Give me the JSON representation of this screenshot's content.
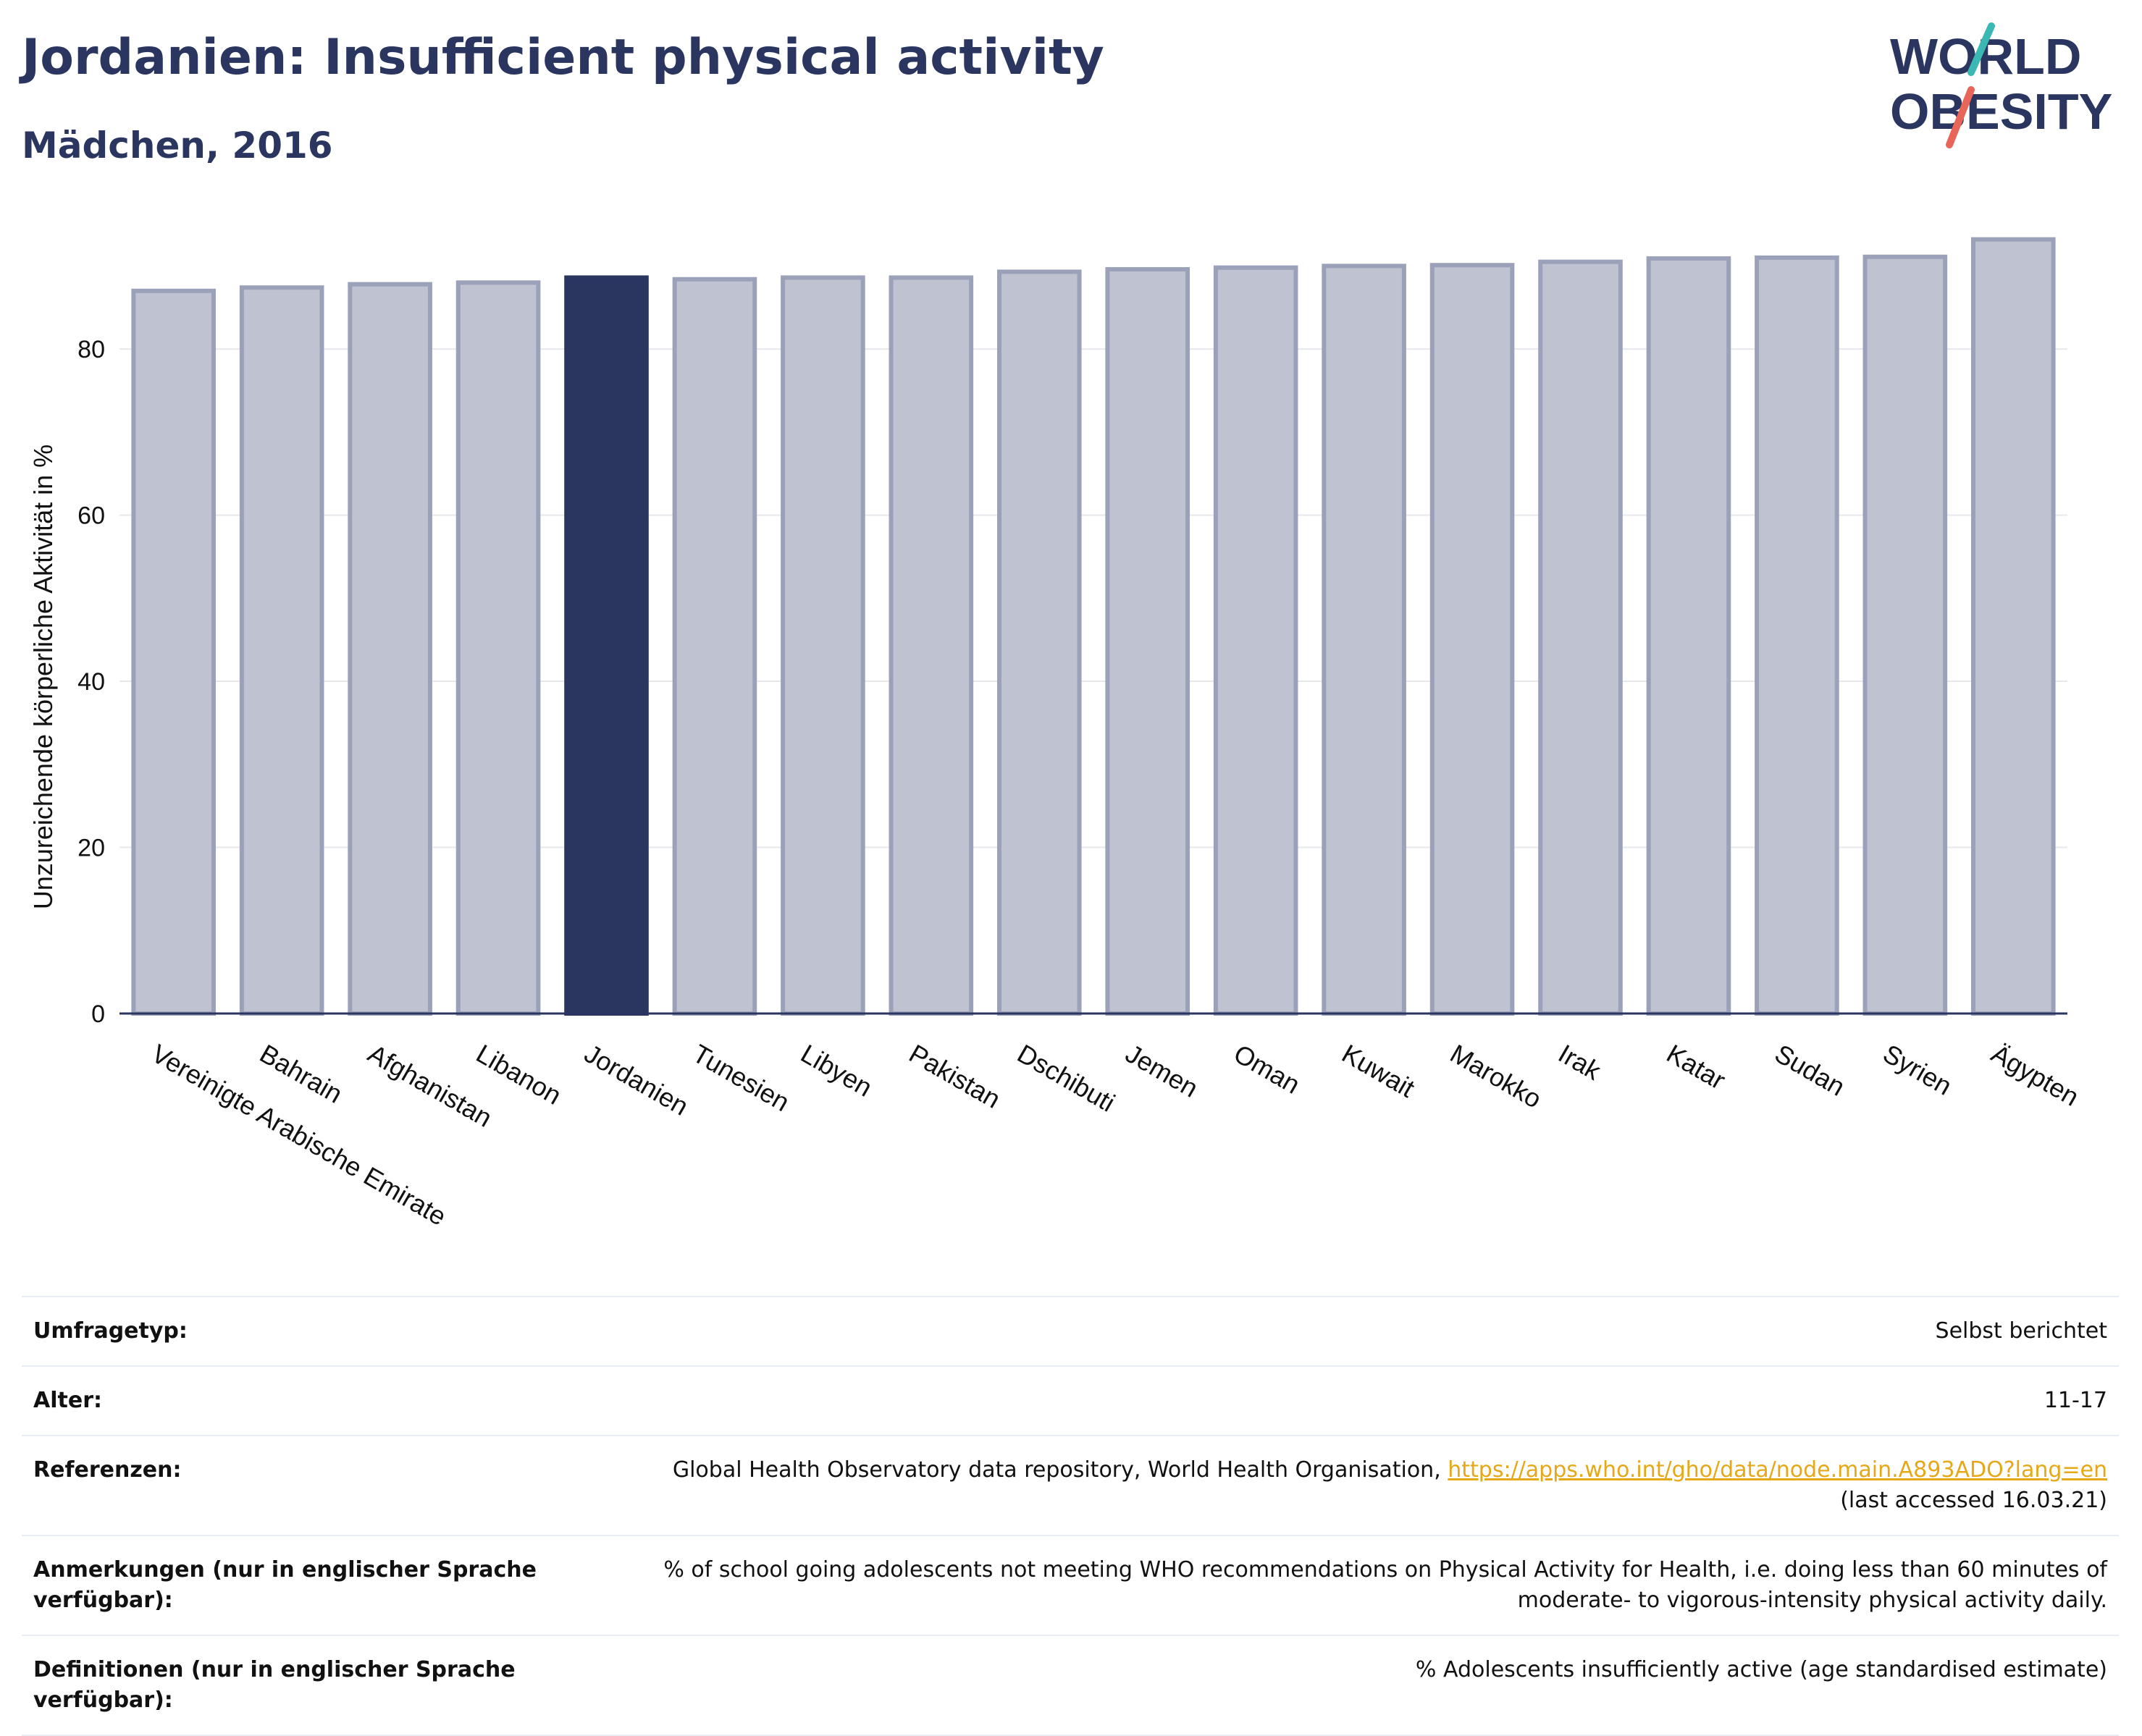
{
  "header": {
    "title": "Jordanien: Insufficient physical activity",
    "subtitle": "Mädchen, 2016"
  },
  "logo": {
    "line1": "WORLD",
    "line2": "OBESITY",
    "accent_teal": "#3bb8b3",
    "accent_red": "#e8655a"
  },
  "colors": {
    "highlight": "#2a3560",
    "bar": "#bfc3d1",
    "bar_stroke": "#9aa1b8"
  },
  "chart_data": {
    "type": "bar",
    "ylabel": "Unzureichende körperliche Aktivität in %",
    "xlabel": "",
    "ylim": [
      0,
      95
    ],
    "yticks": [
      0,
      20,
      40,
      60,
      80
    ],
    "grid": true,
    "highlight": "Jordanien",
    "categories": [
      "Vereinigte Arabische Emirate",
      "Bahrain",
      "Afghanistan",
      "Libanon",
      "Jordanien",
      "Tunesien",
      "Libyen",
      "Pakistan",
      "Dschibuti",
      "Jemen",
      "Oman",
      "Kuwait",
      "Marokko",
      "Irak",
      "Katar",
      "Sudan",
      "Syrien",
      "Ägypten"
    ],
    "values": [
      87.0,
      87.4,
      87.8,
      88.0,
      88.6,
      88.4,
      88.6,
      88.6,
      89.3,
      89.6,
      89.8,
      90.0,
      90.1,
      90.5,
      90.9,
      91.0,
      91.1,
      93.2
    ]
  },
  "info": [
    {
      "key": "Umfragetyp:",
      "value": "Selbst berichtet"
    },
    {
      "key": "Alter:",
      "value": "11-17"
    },
    {
      "key": "Referenzen:",
      "value": "Global Health Observatory data repository, World Health Organisation, ",
      "link": "https://apps.who.int/gho/data/node.main.A893ADO?lang=en",
      "suffix": "(last accessed 16.03.21)"
    },
    {
      "key": "Anmerkungen (nur in englischer Sprache verfügbar):",
      "value": "% of school going adolescents not meeting WHO recommendations on Physical Activity for Health, i.e. doing less than 60 minutes of moderate- to vigorous-intensity physical activity daily."
    },
    {
      "key": "Definitionen (nur in englischer Sprache verfügbar):",
      "value": "% Adolescents insufficiently active (age standardised estimate)"
    }
  ]
}
